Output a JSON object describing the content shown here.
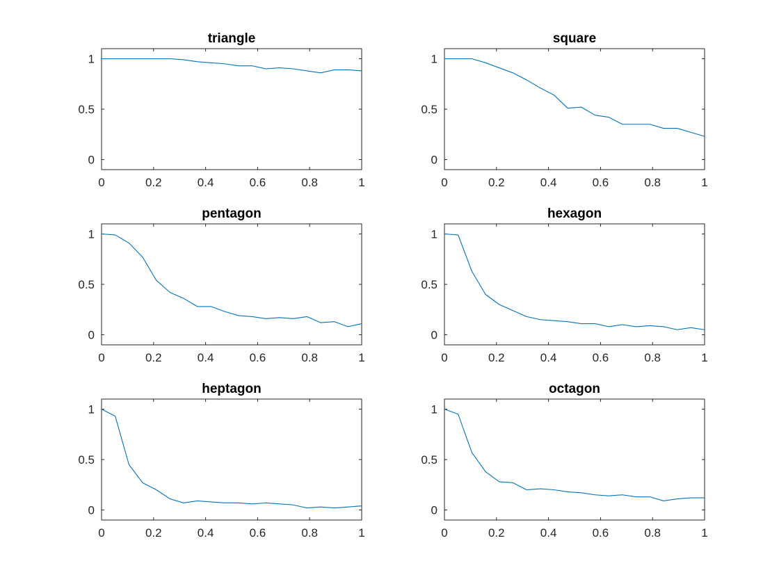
{
  "chart_data": [
    {
      "type": "line",
      "title": "triangle",
      "xlim": [
        0,
        1
      ],
      "ylim": [
        -0.1,
        1.1
      ],
      "xticks": [
        "0",
        "0.2",
        "0.4",
        "0.6",
        "0.8",
        "1"
      ],
      "yticks": [
        "0",
        "0.5",
        "1"
      ],
      "grid": false,
      "series": [
        {
          "x": [
            0,
            0.0526,
            0.1053,
            0.1579,
            0.2105,
            0.2632,
            0.3158,
            0.3684,
            0.4211,
            0.4737,
            0.5263,
            0.5789,
            0.6316,
            0.6842,
            0.7368,
            0.7895,
            0.8421,
            0.8947,
            0.9474,
            1
          ],
          "y": [
            1,
            1,
            1,
            1,
            1,
            1,
            0.99,
            0.97,
            0.96,
            0.95,
            0.93,
            0.93,
            0.9,
            0.91,
            0.9,
            0.88,
            0.86,
            0.89,
            0.89,
            0.88
          ]
        }
      ]
    },
    {
      "type": "line",
      "title": "square",
      "xlim": [
        0,
        1
      ],
      "ylim": [
        -0.1,
        1.1
      ],
      "xticks": [
        "0",
        "0.2",
        "0.4",
        "0.6",
        "0.8",
        "1"
      ],
      "yticks": [
        "0",
        "0.5",
        "1"
      ],
      "grid": false,
      "series": [
        {
          "x": [
            0,
            0.0526,
            0.1053,
            0.1579,
            0.2105,
            0.2632,
            0.3158,
            0.3684,
            0.4211,
            0.4737,
            0.5263,
            0.5789,
            0.6316,
            0.6842,
            0.7368,
            0.7895,
            0.8421,
            0.8947,
            0.9474,
            1
          ],
          "y": [
            1,
            1,
            1,
            0.96,
            0.91,
            0.86,
            0.79,
            0.71,
            0.64,
            0.51,
            0.52,
            0.44,
            0.42,
            0.35,
            0.35,
            0.35,
            0.31,
            0.31,
            0.27,
            0.23
          ]
        }
      ]
    },
    {
      "type": "line",
      "title": "pentagon",
      "xlim": [
        0,
        1
      ],
      "ylim": [
        -0.1,
        1.1
      ],
      "xticks": [
        "0",
        "0.2",
        "0.4",
        "0.6",
        "0.8",
        "1"
      ],
      "yticks": [
        "0",
        "0.5",
        "1"
      ],
      "grid": false,
      "series": [
        {
          "x": [
            0,
            0.0526,
            0.1053,
            0.1579,
            0.2105,
            0.2632,
            0.3158,
            0.3684,
            0.4211,
            0.4737,
            0.5263,
            0.5789,
            0.6316,
            0.6842,
            0.7368,
            0.7895,
            0.8421,
            0.8947,
            0.9474,
            1
          ],
          "y": [
            1,
            0.99,
            0.91,
            0.77,
            0.54,
            0.42,
            0.36,
            0.28,
            0.28,
            0.23,
            0.19,
            0.18,
            0.16,
            0.17,
            0.16,
            0.18,
            0.12,
            0.13,
            0.08,
            0.11
          ]
        }
      ]
    },
    {
      "type": "line",
      "title": "hexagon",
      "xlim": [
        0,
        1
      ],
      "ylim": [
        -0.1,
        1.1
      ],
      "xticks": [
        "0",
        "0.2",
        "0.4",
        "0.6",
        "0.8",
        "1"
      ],
      "yticks": [
        "0",
        "0.5",
        "1"
      ],
      "grid": false,
      "series": [
        {
          "x": [
            0,
            0.0526,
            0.1053,
            0.1579,
            0.2105,
            0.2632,
            0.3158,
            0.3684,
            0.4211,
            0.4737,
            0.5263,
            0.5789,
            0.6316,
            0.6842,
            0.7368,
            0.7895,
            0.8421,
            0.8947,
            0.9474,
            1
          ],
          "y": [
            1,
            0.99,
            0.63,
            0.4,
            0.3,
            0.24,
            0.18,
            0.15,
            0.14,
            0.13,
            0.11,
            0.11,
            0.08,
            0.1,
            0.08,
            0.09,
            0.08,
            0.05,
            0.07,
            0.05
          ]
        }
      ]
    },
    {
      "type": "line",
      "title": "heptagon",
      "xlim": [
        0,
        1
      ],
      "ylim": [
        -0.1,
        1.1
      ],
      "xticks": [
        "0",
        "0.2",
        "0.4",
        "0.6",
        "0.8",
        "1"
      ],
      "yticks": [
        "0",
        "0.5",
        "1"
      ],
      "grid": false,
      "series": [
        {
          "x": [
            0,
            0.0526,
            0.1053,
            0.1579,
            0.2105,
            0.2632,
            0.3158,
            0.3684,
            0.4211,
            0.4737,
            0.5263,
            0.5789,
            0.6316,
            0.6842,
            0.7368,
            0.7895,
            0.8421,
            0.8947,
            0.9474,
            1
          ],
          "y": [
            1,
            0.93,
            0.45,
            0.27,
            0.2,
            0.11,
            0.07,
            0.09,
            0.08,
            0.07,
            0.07,
            0.06,
            0.07,
            0.06,
            0.05,
            0.02,
            0.03,
            0.02,
            0.03,
            0.04
          ]
        }
      ]
    },
    {
      "type": "line",
      "title": "octagon",
      "xlim": [
        0,
        1
      ],
      "ylim": [
        -0.1,
        1.1
      ],
      "xticks": [
        "0",
        "0.2",
        "0.4",
        "0.6",
        "0.8",
        "1"
      ],
      "yticks": [
        "0",
        "0.5",
        "1"
      ],
      "grid": false,
      "series": [
        {
          "x": [
            0,
            0.0526,
            0.1053,
            0.1579,
            0.2105,
            0.2632,
            0.3158,
            0.3684,
            0.4211,
            0.4737,
            0.5263,
            0.5789,
            0.6316,
            0.6842,
            0.7368,
            0.7895,
            0.8421,
            0.8947,
            0.9474,
            1
          ],
          "y": [
            1,
            0.95,
            0.57,
            0.38,
            0.28,
            0.27,
            0.2,
            0.21,
            0.2,
            0.18,
            0.17,
            0.15,
            0.14,
            0.15,
            0.13,
            0.13,
            0.09,
            0.11,
            0.12,
            0.12
          ]
        }
      ]
    }
  ],
  "colors": {
    "line": "#0072BD",
    "axes": "#262626",
    "title": "#000000",
    "background": "#FFFFFF"
  }
}
